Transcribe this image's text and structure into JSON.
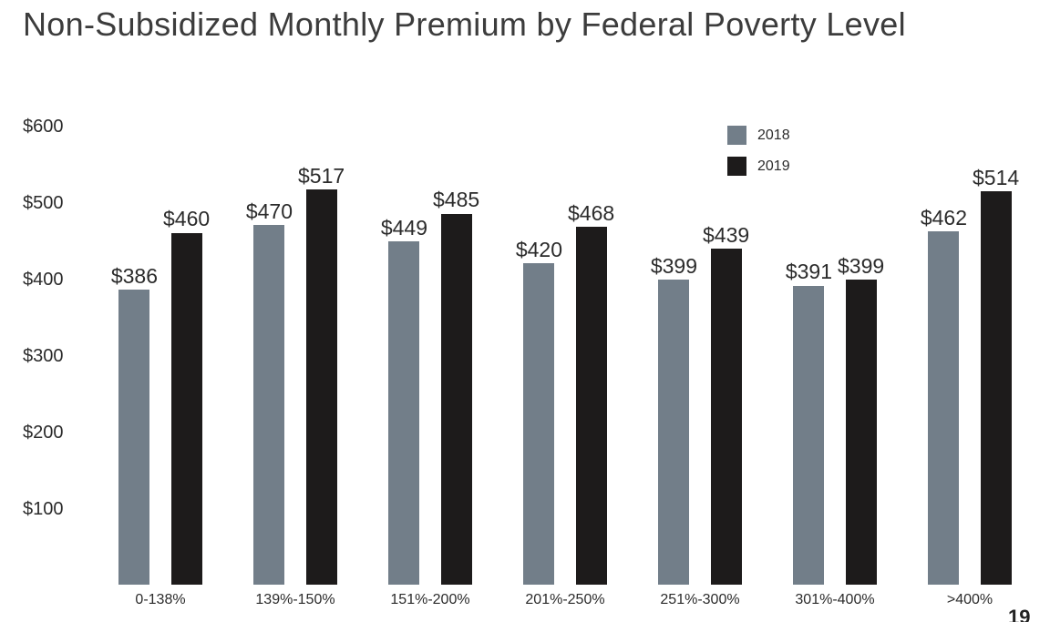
{
  "slide": {
    "title": "Non-Subsidized Monthly Premium by Federal Poverty Level",
    "page_number": "19"
  },
  "colors": {
    "background": "#ffffff",
    "title_text": "#3c3c3c",
    "axis_text": "#2b2b2b",
    "series_2018": "#727e89",
    "series_2019": "#1d1b1b"
  },
  "chart_data": {
    "type": "bar",
    "title": "Non-Subsidized Monthly Premium by Federal Poverty Level",
    "categories": [
      "0-138%",
      "139%-150%",
      "151%-200%",
      "201%-250%",
      "251%-300%",
      "301%-400%",
      ">400%"
    ],
    "series": [
      {
        "name": "2018",
        "color": "#727e89",
        "values": [
          386,
          470,
          449,
          420,
          399,
          391,
          462
        ]
      },
      {
        "name": "2019",
        "color": "#1d1b1b",
        "values": [
          460,
          517,
          485,
          468,
          439,
          399,
          514
        ]
      }
    ],
    "data_label_prefix": "$",
    "y_ticks": [
      {
        "label": "$600",
        "value": 600
      },
      {
        "label": "$500",
        "value": 500
      },
      {
        "label": "$400",
        "value": 400
      },
      {
        "label": "$300",
        "value": 300
      },
      {
        "label": "$200",
        "value": 200
      },
      {
        "label": "$100",
        "value": 100
      }
    ],
    "ylim": [
      0,
      600
    ],
    "xlabel": "",
    "ylabel": "",
    "grid": false,
    "legend_position": "top-right"
  }
}
